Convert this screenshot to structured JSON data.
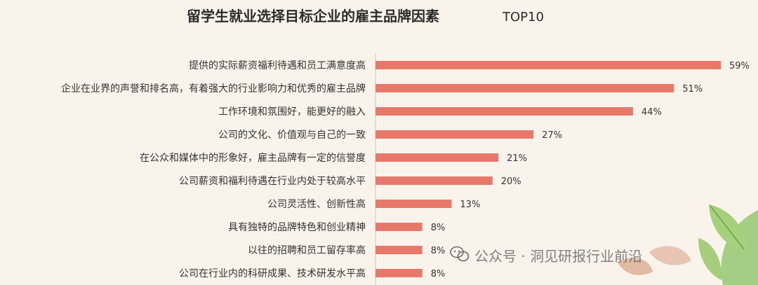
{
  "chart_data": {
    "type": "bar",
    "orientation": "horizontal",
    "title": "留学生就业选择目标企业的雇主品牌因素",
    "title_suffix": "TOP10",
    "categories": [
      "提供的实际薪资福利待遇和员工满意度高",
      "企业在业界的声誉和排名高，有着强大的行业影响力和优秀的雇主品牌",
      "工作环境和氛围好，能更好的融入",
      "公司的文化、价值观与自己的一致",
      "在公众和媒体中的形象好，雇主品牌有一定的信誉度",
      "公司薪资和福利待遇在行业内处于较高水平",
      "公司灵活性、创新性高",
      "具有独特的品牌特色和创业精神",
      "以往的招聘和员工留存率高",
      "公司在行业内的科研成果、技术研发水平高"
    ],
    "values": [
      59,
      51,
      44,
      27,
      21,
      20,
      13,
      8,
      8,
      8
    ],
    "value_labels": [
      "59%",
      "51%",
      "44%",
      "27%",
      "21%",
      "20%",
      "13%",
      "8%",
      "8%",
      "8%"
    ],
    "unit": "%",
    "xlim": [
      0,
      59
    ],
    "bar_color": "#e8786a",
    "axis_color": "#c9c9c9",
    "grid": false,
    "legend": "none"
  },
  "watermark": {
    "text": "公众号 · 洞见研报行业前沿",
    "icon": "wechat-icon"
  }
}
